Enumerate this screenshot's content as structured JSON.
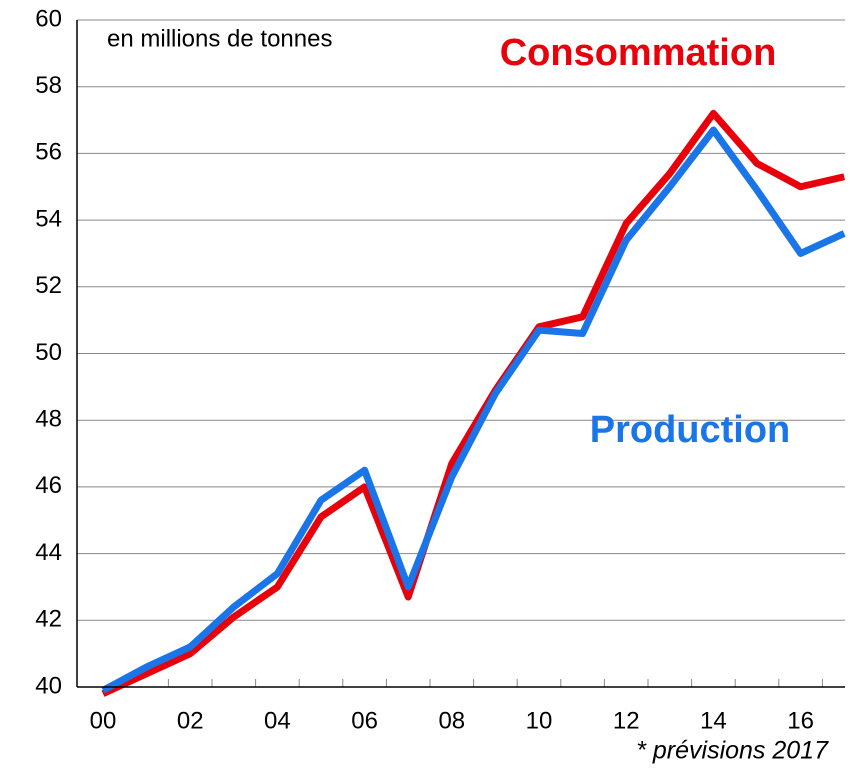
{
  "chart_data": {
    "type": "line",
    "subtitle": "en millions de tonnes",
    "note": "* prévisions 2017",
    "categories": [
      "00",
      null,
      "02",
      null,
      "04",
      null,
      "06",
      null,
      "08",
      null,
      "10",
      null,
      "12",
      null,
      "14",
      null,
      "16",
      null
    ],
    "series": [
      {
        "name": "Consommation",
        "color": "#e8000b",
        "values": [
          39.8,
          40.4,
          41.0,
          42.1,
          43.0,
          45.1,
          46.0,
          42.7,
          46.7,
          48.9,
          50.8,
          51.1,
          53.9,
          55.4,
          57.2,
          55.7,
          55.0,
          55.3
        ]
      },
      {
        "name": "Production",
        "color": "#1a75e8",
        "values": [
          39.9,
          40.6,
          41.2,
          42.4,
          43.4,
          45.6,
          46.5,
          43.0,
          46.3,
          48.8,
          50.7,
          50.6,
          53.4,
          55.0,
          56.7,
          54.9,
          53.0,
          53.6
        ]
      }
    ],
    "ylim": [
      40,
      60
    ],
    "yticks": [
      40,
      42,
      44,
      46,
      48,
      50,
      52,
      54,
      56,
      58,
      60
    ],
    "grid": true
  }
}
